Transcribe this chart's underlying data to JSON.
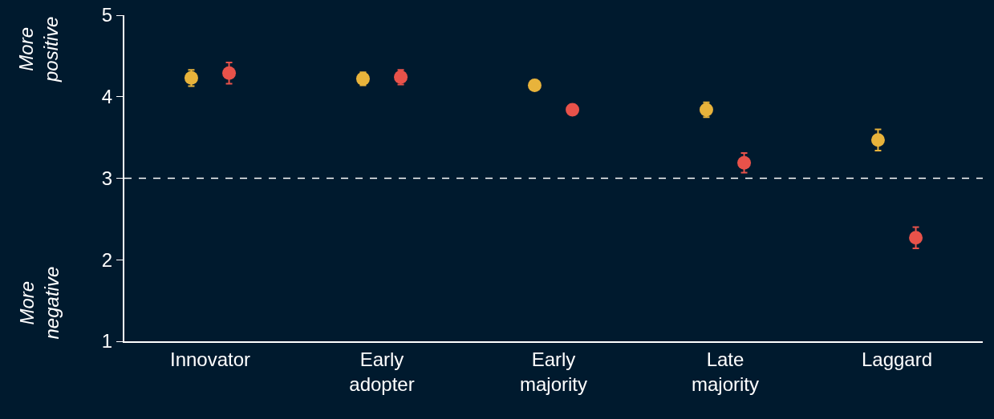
{
  "chart_data": {
    "type": "scatter",
    "categories": [
      "Innovator",
      "Early adopter",
      "Early majority",
      "Late majority",
      "Laggard"
    ],
    "series": [
      {
        "color": "#e8b33b",
        "values": [
          4.23,
          4.22,
          4.14,
          3.84,
          3.47
        ],
        "errors": [
          0.1,
          0.08,
          0.02,
          0.09,
          0.13
        ]
      },
      {
        "color": "#e8524a",
        "values": [
          4.29,
          4.24,
          3.84,
          3.19,
          2.27
        ],
        "errors": [
          0.13,
          0.09,
          0.06,
          0.12,
          0.13
        ]
      }
    ],
    "ylim": [
      1,
      5
    ],
    "yticks": [
      1,
      2,
      3,
      4,
      5
    ],
    "ref_lines": [
      {
        "axis": "y",
        "value": 3,
        "color": "#ffffff",
        "line_style": "dashed"
      }
    ],
    "annotations": [
      "More positive",
      "More negative"
    ],
    "grid": false,
    "marker": "circle"
  }
}
